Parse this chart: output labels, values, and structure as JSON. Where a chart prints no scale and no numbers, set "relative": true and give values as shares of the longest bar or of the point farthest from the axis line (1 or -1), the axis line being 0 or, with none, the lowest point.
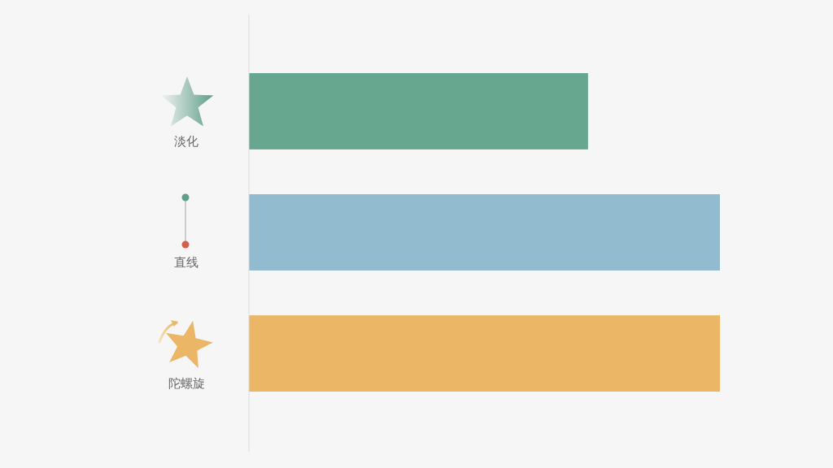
{
  "chart_data": {
    "type": "bar",
    "orientation": "horizontal",
    "relative": true,
    "categories": [
      "淡化",
      "直线",
      "陀螺旋"
    ],
    "values": [
      0.72,
      1,
      1
    ],
    "colors": [
      "#67a78f",
      "#93bbcf",
      "#ebb666"
    ]
  }
}
